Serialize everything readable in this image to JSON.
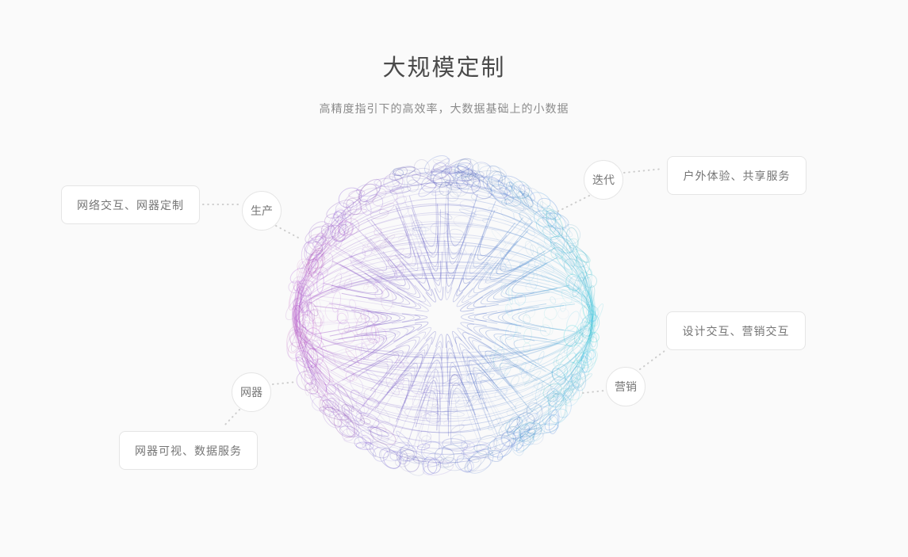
{
  "header": {
    "title": "大规模定制",
    "subtitle": "高精度指引下的高效率，大数据基础上的小数据"
  },
  "diagram": {
    "sphere_colors": {
      "left": "#b457c9",
      "mid_left": "#8a5ac8",
      "center": "#5b5ec2",
      "mid_right": "#4b8fd0",
      "right": "#3fc3da"
    },
    "nodes": [
      {
        "id": "production",
        "circle_label": "生产",
        "box_label": "网络交互、网器定制"
      },
      {
        "id": "iteration",
        "circle_label": "迭代",
        "box_label": "户外体验、共享服务"
      },
      {
        "id": "marketing",
        "circle_label": "营销",
        "box_label": "设计交互、营销交互"
      },
      {
        "id": "appliance",
        "circle_label": "网器",
        "box_label": "网器可视、数据服务"
      }
    ]
  }
}
